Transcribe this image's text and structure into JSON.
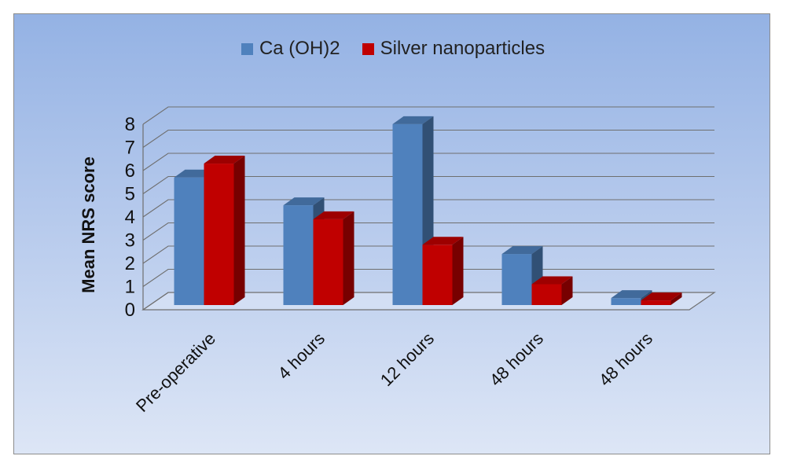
{
  "chart_data": {
    "type": "bar",
    "style": "3d-clustered-column",
    "title": "",
    "xlabel": "",
    "ylabel": "Mean NRS score",
    "ylim": [
      0,
      8
    ],
    "yticks": [
      0,
      1,
      2,
      3,
      4,
      5,
      6,
      7,
      8
    ],
    "grid": true,
    "legend_position": "top",
    "categories": [
      "Pre-operative",
      "4 hours",
      "12 hours",
      "48 hours",
      "48 hours"
    ],
    "series": [
      {
        "name": "Ca (OH)2",
        "color": "#4f81bd",
        "values": [
          5.5,
          4.3,
          7.8,
          2.2,
          0.3
        ]
      },
      {
        "name": "Silver nanoparticles",
        "color": "#c00000",
        "values": [
          6.1,
          3.7,
          2.6,
          0.9,
          0.2
        ]
      }
    ]
  }
}
